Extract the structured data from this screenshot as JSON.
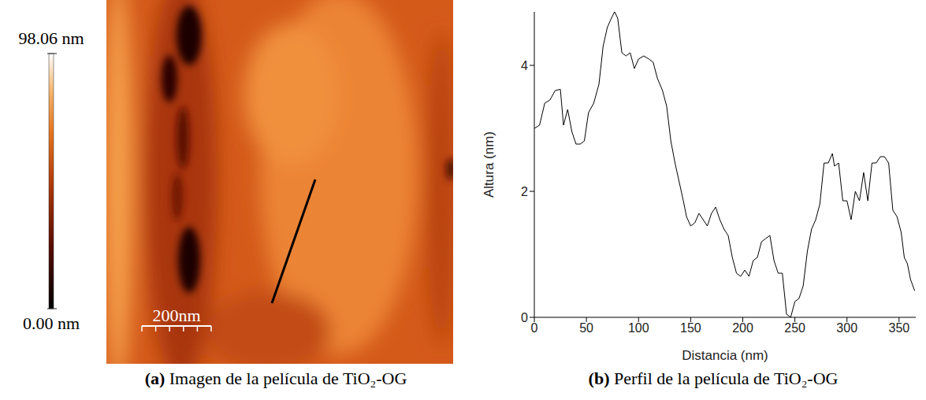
{
  "chart_data": {
    "type": "line",
    "x_label": "Distancia (nm)",
    "y_label": "Altura (nm)",
    "x": [
      0,
      5,
      10,
      15,
      20,
      25,
      28,
      32,
      36,
      40,
      44,
      48,
      52,
      57,
      62,
      66,
      70,
      74,
      77,
      80,
      84,
      88,
      92,
      96,
      100,
      105,
      110,
      114,
      118,
      123,
      127,
      131,
      135,
      139,
      143,
      146,
      150,
      154,
      158,
      162,
      166,
      170,
      174,
      178,
      182,
      186,
      190,
      194,
      198,
      202,
      206,
      210,
      214,
      218,
      222,
      226,
      230,
      234,
      238,
      242,
      246,
      250,
      254,
      258,
      262,
      266,
      270,
      274,
      278,
      282,
      286,
      288,
      292,
      296,
      300,
      304,
      308,
      312,
      316,
      320,
      324,
      328,
      332,
      336,
      340,
      344,
      348,
      352,
      355,
      358,
      361,
      365
    ],
    "values": [
      3.0,
      3.05,
      3.4,
      3.45,
      3.6,
      3.62,
      3.05,
      3.3,
      2.95,
      2.75,
      2.75,
      2.8,
      3.25,
      3.4,
      3.7,
      4.3,
      4.6,
      4.75,
      4.85,
      4.75,
      4.2,
      4.15,
      4.2,
      3.95,
      4.1,
      4.15,
      4.1,
      4.05,
      3.8,
      3.6,
      3.35,
      2.8,
      2.45,
      2.15,
      1.85,
      1.6,
      1.45,
      1.5,
      1.65,
      1.55,
      1.45,
      1.65,
      1.75,
      1.55,
      1.4,
      1.3,
      0.95,
      0.7,
      0.65,
      0.75,
      0.65,
      0.9,
      0.95,
      1.2,
      1.25,
      1.3,
      0.9,
      0.7,
      0.7,
      0.05,
      0.0,
      0.25,
      0.3,
      0.5,
      1.05,
      1.4,
      1.55,
      1.8,
      2.45,
      2.45,
      2.6,
      2.4,
      2.45,
      1.85,
      1.85,
      1.55,
      2.0,
      1.85,
      2.3,
      1.85,
      2.45,
      2.45,
      2.55,
      2.55,
      2.45,
      1.7,
      1.6,
      1.35,
      0.95,
      0.85,
      0.6,
      0.42
    ],
    "color": "#000000",
    "xlim": [
      0,
      366
    ],
    "xticks": [
      0,
      50,
      100,
      150,
      200,
      250,
      300,
      350
    ],
    "ylim": [
      0,
      4.85
    ],
    "yticks": [
      0,
      2,
      4
    ],
    "grid": false,
    "caption": {
      "letter": "(b)",
      "text": "Perfil de la película de TiO₂-OG"
    }
  },
  "image_panel": {
    "caption": {
      "letter": "(a)",
      "text": "Imagen de la película de TiO₂-OG"
    },
    "colorbar": {
      "range": [
        0,
        98.06
      ],
      "ticks": [
        {
          "value": 0,
          "label": "0.00 nm"
        },
        {
          "value": 98.06,
          "label": "98.06 nm"
        }
      ]
    },
    "scale_bar": {
      "value": 200,
      "label": "200nm"
    },
    "image_width_nm": 1000
  }
}
